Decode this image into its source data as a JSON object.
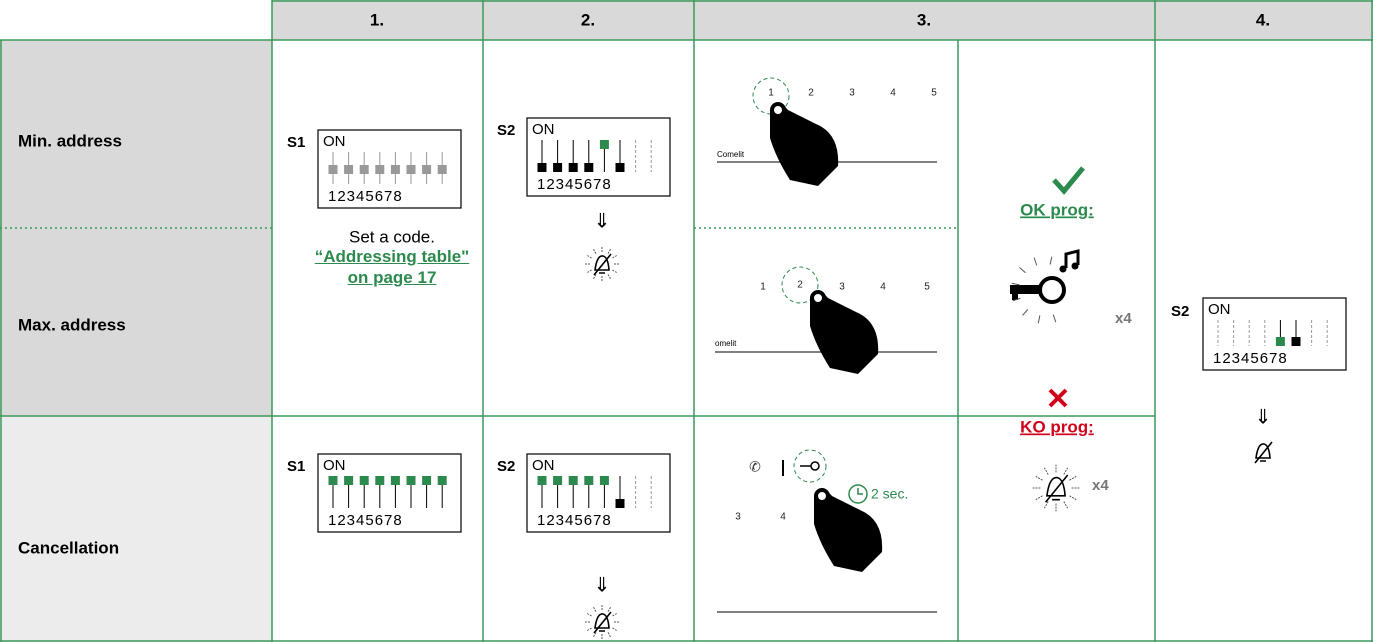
{
  "header": {
    "columns": [
      "1.",
      "2.",
      "3.",
      "4."
    ]
  },
  "rows": {
    "min": "Min. address",
    "max": "Max. address",
    "cancel": "Cancellation"
  },
  "step1": {
    "switch_label": "S1",
    "switch_on": "ON",
    "switch_numbers": "12345678",
    "note": "Set a code.",
    "link": "“Addressing table\" on page 17",
    "cancel_switch_label": "S1",
    "cancel_switch_on": "ON",
    "cancel_switch_numbers": "12345678"
  },
  "step2": {
    "switch_label": "S2",
    "switch_on": "ON",
    "switch_numbers": "12345678",
    "cancel_switch_label": "S2",
    "cancel_switch_on": "ON",
    "cancel_switch_numbers": "12345678"
  },
  "step3": {
    "min_keys": [
      "1",
      "2",
      "3",
      "4",
      "5"
    ],
    "min_brand": "Comelit",
    "max_keys": [
      "1",
      "2",
      "3",
      "4",
      "5"
    ],
    "max_brand": "omelit",
    "cancel_keys": [
      "3",
      "4"
    ],
    "cancel_time": "2 sec.",
    "ok": "OK prog:",
    "ok_count": "x4",
    "ko": "KO prog:",
    "ko_count": "x4"
  },
  "step4": {
    "switch_label": "S2",
    "switch_on": "ON",
    "switch_numbers": "12345678"
  }
}
